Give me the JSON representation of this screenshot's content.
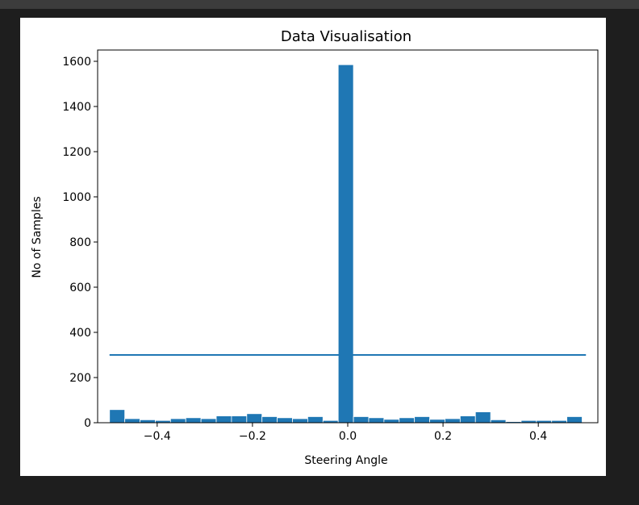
{
  "chart_data": {
    "type": "bar",
    "title": "Data Visualisation",
    "xlabel": "Steering Angle",
    "ylabel": "No of Samples",
    "xlim": [
      -0.525,
      0.525
    ],
    "ylim": [
      0,
      1650
    ],
    "xticks": [
      -0.4,
      -0.2,
      0.0,
      0.2,
      0.4
    ],
    "xtick_labels": [
      "−0.4",
      "−0.2",
      "0.0",
      "0.2",
      "0.4"
    ],
    "yticks": [
      0,
      200,
      400,
      600,
      800,
      1000,
      1200,
      1400,
      1600
    ],
    "ytick_labels": [
      "0",
      "200",
      "400",
      "600",
      "800",
      "1000",
      "1200",
      "1400",
      "1600"
    ],
    "bar_color": "#1f77b4",
    "bin_width": 0.032,
    "bin_centers": [
      -0.484,
      -0.452,
      -0.42,
      -0.388,
      -0.356,
      -0.324,
      -0.292,
      -0.26,
      -0.228,
      -0.196,
      -0.164,
      -0.132,
      -0.1,
      -0.068,
      -0.036,
      -0.004,
      0.028,
      0.06,
      0.092,
      0.124,
      0.156,
      0.188,
      0.22,
      0.252,
      0.284,
      0.316,
      0.348,
      0.38,
      0.412,
      0.444,
      0.476
    ],
    "values": [
      58,
      18,
      13,
      10,
      18,
      22,
      18,
      30,
      30,
      40,
      27,
      22,
      18,
      27,
      10,
      1585,
      27,
      22,
      15,
      22,
      27,
      15,
      18,
      30,
      48,
      13,
      5,
      10,
      10,
      10,
      27
    ],
    "threshold_line": {
      "x": [
        -0.5,
        0.5
      ],
      "y": 300,
      "color": "#1f77b4"
    }
  }
}
